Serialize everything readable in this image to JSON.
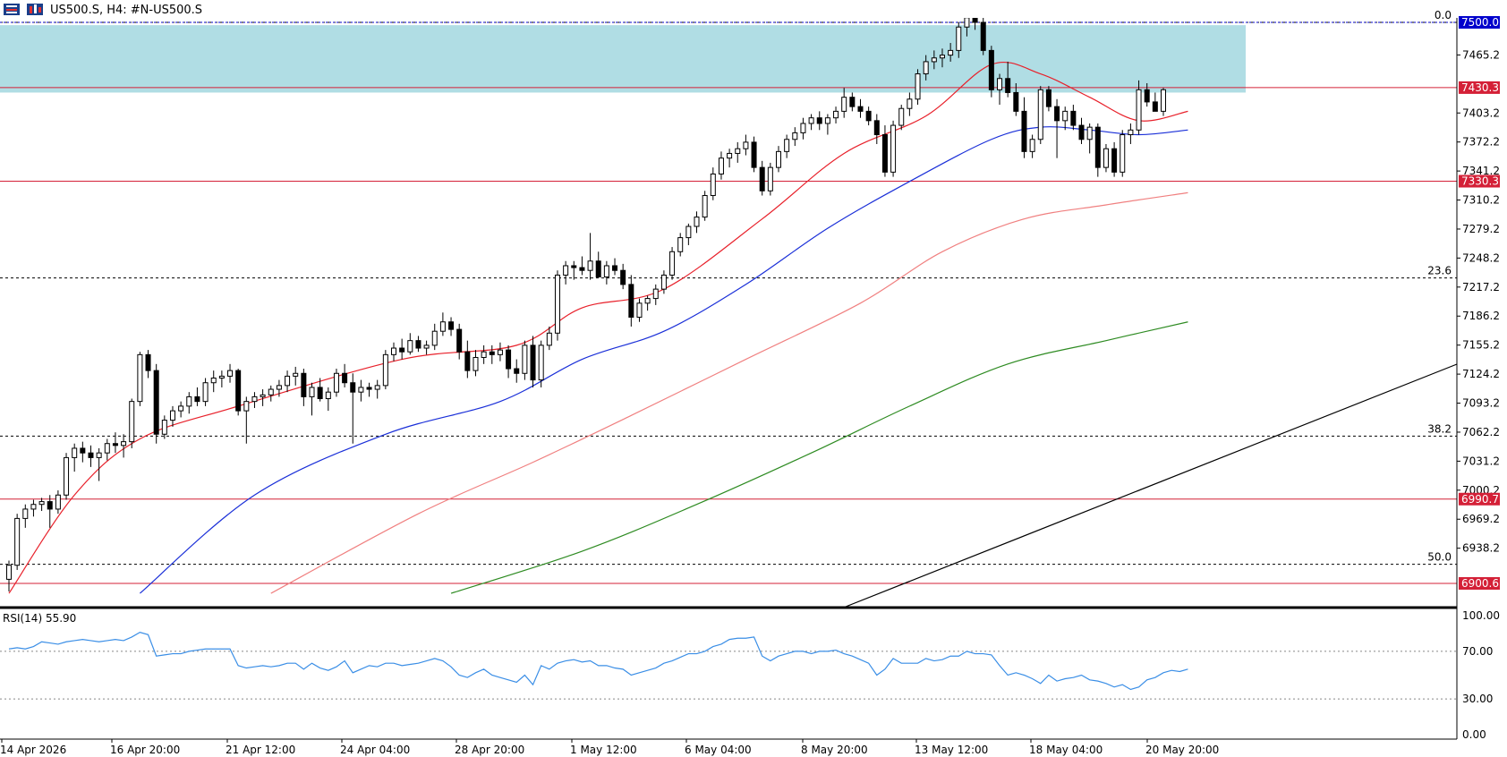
{
  "header": {
    "symbol_label": "US500.S, H4:  #N-US500.S",
    "menu_icon": "list-icon",
    "chart_icon": "candlestick-icon"
  },
  "price_axis": {
    "ticks": [
      "7465.2",
      "7403.2",
      "7372.2",
      "7341.2",
      "7310.2",
      "7279.2",
      "7248.2",
      "7217.2",
      "7186.2",
      "7155.2",
      "7124.2",
      "7093.2",
      "7062.2",
      "7031.2",
      "7000.2",
      "6969.2",
      "6938.2"
    ],
    "badges": [
      {
        "label": "7500.0",
        "value": 7500.0,
        "color": "#0000cc"
      },
      {
        "label": "7430.3",
        "value": 7430.3,
        "color": "#d42037"
      },
      {
        "label": "7330.3",
        "value": 7330.3,
        "color": "#d42037"
      },
      {
        "label": "6990.7",
        "value": 6990.7,
        "color": "#d42037"
      },
      {
        "label": "6900.6",
        "value": 6900.6,
        "color": "#d42037"
      }
    ]
  },
  "time_axis": {
    "labels": [
      "14 Apr 2026",
      "16 Apr 20:00",
      "21 Apr 12:00",
      "24 Apr 04:00",
      "28 Apr 20:00",
      "1 May 12:00",
      "6 May 04:00",
      "8 May 20:00",
      "13 May 12:00",
      "18 May 04:00",
      "20 May 20:00"
    ]
  },
  "fibonacci": [
    {
      "label": "0.0",
      "value": 7500.0
    },
    {
      "label": "23.6",
      "value": 7227.0
    },
    {
      "label": "38.2",
      "value": 7058.0
    },
    {
      "label": "50.0",
      "value": 6921.0
    }
  ],
  "zone": {
    "top": 7497,
    "bottom": 7425,
    "color": "#b0dde4"
  },
  "colors": {
    "ma_fast": "#e8202a",
    "ma_mid": "#1a2fd8",
    "ma_slow": "#f08080",
    "ma_long": "#2e8b22",
    "rsi": "#3a8ee6",
    "horizontal": "#d42037",
    "trendline": "#000000"
  },
  "rsi": {
    "label": "RSI(14) 55.90",
    "ticks": [
      "100.00",
      "70.00",
      "30.00",
      "0.00"
    ],
    "levels": [
      70,
      30
    ]
  },
  "chart_data": {
    "type": "candlestick",
    "symbol": "US500.S",
    "timeframe": "H4",
    "ylim": [
      6890,
      7520
    ],
    "candles": [
      [
        6905,
        6925,
        6892,
        6920
      ],
      [
        6920,
        6975,
        6915,
        6970
      ],
      [
        6970,
        6985,
        6960,
        6980
      ],
      [
        6980,
        6990,
        6972,
        6985
      ],
      [
        6985,
        6992,
        6978,
        6988
      ],
      [
        6988,
        6995,
        6960,
        6980
      ],
      [
        6980,
        7000,
        6975,
        6995
      ],
      [
        6995,
        7040,
        6990,
        7035
      ],
      [
        7035,
        7050,
        7020,
        7045
      ],
      [
        7045,
        7052,
        7030,
        7040
      ],
      [
        7040,
        7048,
        7025,
        7035
      ],
      [
        7035,
        7045,
        7010,
        7040
      ],
      [
        7040,
        7055,
        7032,
        7050
      ],
      [
        7050,
        7062,
        7040,
        7048
      ],
      [
        7048,
        7060,
        7035,
        7052
      ],
      [
        7052,
        7098,
        7045,
        7095
      ],
      [
        7095,
        7148,
        7090,
        7145
      ],
      [
        7145,
        7150,
        7120,
        7128
      ],
      [
        7128,
        7135,
        7050,
        7060
      ],
      [
        7060,
        7080,
        7055,
        7075
      ],
      [
        7075,
        7090,
        7068,
        7085
      ],
      [
        7085,
        7095,
        7078,
        7090
      ],
      [
        7090,
        7105,
        7082,
        7100
      ],
      [
        7100,
        7110,
        7090,
        7095
      ],
      [
        7095,
        7120,
        7090,
        7115
      ],
      [
        7115,
        7128,
        7105,
        7120
      ],
      [
        7120,
        7128,
        7110,
        7122
      ],
      [
        7122,
        7135,
        7115,
        7128
      ],
      [
        7128,
        7130,
        7080,
        7085
      ],
      [
        7085,
        7100,
        7050,
        7095
      ],
      [
        7095,
        7105,
        7088,
        7100
      ],
      [
        7100,
        7108,
        7090,
        7102
      ],
      [
        7102,
        7112,
        7095,
        7108
      ],
      [
        7108,
        7118,
        7100,
        7112
      ],
      [
        7112,
        7128,
        7105,
        7122
      ],
      [
        7122,
        7132,
        7112,
        7125
      ],
      [
        7125,
        7130,
        7090,
        7100
      ],
      [
        7100,
        7115,
        7080,
        7110
      ],
      [
        7110,
        7120,
        7095,
        7098
      ],
      [
        7098,
        7110,
        7085,
        7105
      ],
      [
        7105,
        7130,
        7100,
        7125
      ],
      [
        7125,
        7135,
        7110,
        7115
      ],
      [
        7115,
        7125,
        7050,
        7105
      ],
      [
        7105,
        7118,
        7095,
        7110
      ],
      [
        7110,
        7115,
        7100,
        7108
      ],
      [
        7108,
        7118,
        7098,
        7112
      ],
      [
        7112,
        7150,
        7108,
        7145
      ],
      [
        7145,
        7158,
        7138,
        7152
      ],
      [
        7152,
        7162,
        7140,
        7148
      ],
      [
        7148,
        7168,
        7145,
        7160
      ],
      [
        7160,
        7165,
        7148,
        7152
      ],
      [
        7152,
        7160,
        7145,
        7155
      ],
      [
        7155,
        7178,
        7150,
        7170
      ],
      [
        7170,
        7190,
        7165,
        7180
      ],
      [
        7180,
        7185,
        7165,
        7172
      ],
      [
        7172,
        7178,
        7140,
        7148
      ],
      [
        7148,
        7160,
        7120,
        7128
      ],
      [
        7128,
        7150,
        7122,
        7142
      ],
      [
        7142,
        7155,
        7135,
        7148
      ],
      [
        7148,
        7155,
        7135,
        7145
      ],
      [
        7145,
        7158,
        7138,
        7150
      ],
      [
        7150,
        7155,
        7120,
        7130
      ],
      [
        7130,
        7140,
        7115,
        7125
      ],
      [
        7125,
        7160,
        7118,
        7155
      ],
      [
        7155,
        7165,
        7110,
        7118
      ],
      [
        7118,
        7160,
        7110,
        7155
      ],
      [
        7155,
        7175,
        7150,
        7168
      ],
      [
        7168,
        7235,
        7160,
        7230
      ],
      [
        7230,
        7245,
        7220,
        7240
      ],
      [
        7240,
        7245,
        7225,
        7238
      ],
      [
        7238,
        7250,
        7230,
        7235
      ],
      [
        7235,
        7275,
        7225,
        7245
      ],
      [
        7245,
        7255,
        7230,
        7228
      ],
      [
        7228,
        7245,
        7220,
        7240
      ],
      [
        7240,
        7248,
        7230,
        7235
      ],
      [
        7235,
        7242,
        7215,
        7220
      ],
      [
        7220,
        7230,
        7175,
        7185
      ],
      [
        7185,
        7205,
        7180,
        7200
      ],
      [
        7200,
        7208,
        7192,
        7205
      ],
      [
        7205,
        7220,
        7198,
        7215
      ],
      [
        7215,
        7235,
        7210,
        7230
      ],
      [
        7230,
        7260,
        7225,
        7255
      ],
      [
        7255,
        7275,
        7250,
        7270
      ],
      [
        7270,
        7285,
        7262,
        7282
      ],
      [
        7282,
        7298,
        7275,
        7292
      ],
      [
        7292,
        7320,
        7288,
        7315
      ],
      [
        7315,
        7345,
        7310,
        7338
      ],
      [
        7338,
        7362,
        7332,
        7355
      ],
      [
        7355,
        7365,
        7345,
        7360
      ],
      [
        7360,
        7372,
        7350,
        7365
      ],
      [
        7365,
        7380,
        7358,
        7372
      ],
      [
        7372,
        7378,
        7340,
        7345
      ],
      [
        7345,
        7352,
        7315,
        7320
      ],
      [
        7320,
        7350,
        7315,
        7345
      ],
      [
        7345,
        7368,
        7340,
        7362
      ],
      [
        7362,
        7380,
        7355,
        7375
      ],
      [
        7375,
        7388,
        7368,
        7382
      ],
      [
        7382,
        7398,
        7375,
        7392
      ],
      [
        7392,
        7402,
        7385,
        7398
      ],
      [
        7398,
        7405,
        7385,
        7392
      ],
      [
        7392,
        7402,
        7380,
        7398
      ],
      [
        7398,
        7410,
        7392,
        7405
      ],
      [
        7405,
        7430,
        7398,
        7420
      ],
      [
        7420,
        7425,
        7405,
        7410
      ],
      [
        7410,
        7418,
        7398,
        7405
      ],
      [
        7405,
        7410,
        7390,
        7395
      ],
      [
        7395,
        7402,
        7370,
        7380
      ],
      [
        7380,
        7390,
        7335,
        7340
      ],
      [
        7340,
        7395,
        7335,
        7390
      ],
      [
        7390,
        7412,
        7385,
        7408
      ],
      [
        7408,
        7425,
        7400,
        7418
      ],
      [
        7418,
        7450,
        7412,
        7445
      ],
      [
        7445,
        7465,
        7438,
        7458
      ],
      [
        7458,
        7470,
        7450,
        7462
      ],
      [
        7462,
        7472,
        7452,
        7465
      ],
      [
        7465,
        7478,
        7458,
        7470
      ],
      [
        7470,
        7500,
        7462,
        7495
      ],
      [
        7495,
        7515,
        7485,
        7505
      ],
      [
        7505,
        7510,
        7492,
        7500
      ],
      [
        7500,
        7505,
        7465,
        7470
      ],
      [
        7470,
        7475,
        7420,
        7428
      ],
      [
        7428,
        7445,
        7412,
        7440
      ],
      [
        7440,
        7458,
        7420,
        7425
      ],
      [
        7425,
        7435,
        7400,
        7405
      ],
      [
        7405,
        7420,
        7355,
        7362
      ],
      [
        7362,
        7380,
        7355,
        7375
      ],
      [
        7375,
        7432,
        7370,
        7428
      ],
      [
        7428,
        7432,
        7405,
        7410
      ],
      [
        7410,
        7418,
        7355,
        7395
      ],
      [
        7395,
        7410,
        7385,
        7405
      ],
      [
        7405,
        7412,
        7385,
        7390
      ],
      [
        7390,
        7398,
        7370,
        7375
      ],
      [
        7375,
        7392,
        7360,
        7388
      ],
      [
        7388,
        7392,
        7335,
        7345
      ],
      [
        7345,
        7370,
        7340,
        7365
      ],
      [
        7365,
        7372,
        7335,
        7340
      ],
      [
        7340,
        7385,
        7335,
        7380
      ],
      [
        7380,
        7392,
        7370,
        7385
      ],
      [
        7385,
        7438,
        7380,
        7428
      ],
      [
        7428,
        7435,
        7410,
        7415
      ],
      [
        7415,
        7425,
        7405,
        7405
      ],
      [
        7405,
        7430,
        7400,
        7428
      ]
    ],
    "moving_averages": [
      {
        "period": "fast",
        "anchors": [
          [
            0,
            6890
          ],
          [
            8,
            6995
          ],
          [
            16,
            7055
          ],
          [
            28,
            7090
          ],
          [
            48,
            7140
          ],
          [
            62,
            7155
          ],
          [
            70,
            7195
          ],
          [
            80,
            7215
          ],
          [
            92,
            7290
          ],
          [
            102,
            7360
          ],
          [
            112,
            7400
          ],
          [
            120,
            7455
          ],
          [
            126,
            7445
          ],
          [
            132,
            7420
          ],
          [
            138,
            7395
          ],
          [
            144,
            7405
          ]
        ]
      },
      {
        "period": "mid",
        "anchors": [
          [
            16,
            6890
          ],
          [
            30,
            6995
          ],
          [
            46,
            7060
          ],
          [
            60,
            7095
          ],
          [
            70,
            7140
          ],
          [
            80,
            7170
          ],
          [
            90,
            7220
          ],
          [
            100,
            7280
          ],
          [
            110,
            7330
          ],
          [
            120,
            7375
          ],
          [
            126,
            7388
          ],
          [
            132,
            7385
          ],
          [
            138,
            7380
          ],
          [
            144,
            7385
          ]
        ]
      },
      {
        "period": "slow",
        "anchors": [
          [
            32,
            6890
          ],
          [
            50,
            6975
          ],
          [
            64,
            7030
          ],
          [
            76,
            7080
          ],
          [
            90,
            7140
          ],
          [
            104,
            7200
          ],
          [
            114,
            7255
          ],
          [
            124,
            7290
          ],
          [
            134,
            7305
          ],
          [
            144,
            7318
          ]
        ]
      },
      {
        "period": "long",
        "anchors": [
          [
            54,
            6890
          ],
          [
            70,
            6935
          ],
          [
            84,
            6985
          ],
          [
            98,
            7040
          ],
          [
            110,
            7090
          ],
          [
            122,
            7135
          ],
          [
            134,
            7160
          ],
          [
            144,
            7180
          ]
        ]
      }
    ],
    "rsi_values": [
      72,
      73,
      72,
      74,
      78,
      77,
      76,
      78,
      79,
      80,
      79,
      78,
      79,
      80,
      79,
      82,
      86,
      84,
      66,
      67,
      68,
      68,
      70,
      71,
      72,
      72,
      72,
      72,
      58,
      56,
      57,
      58,
      57,
      58,
      60,
      60,
      55,
      60,
      56,
      54,
      57,
      62,
      52,
      55,
      58,
      57,
      60,
      60,
      58,
      59,
      60,
      62,
      64,
      62,
      57,
      50,
      48,
      52,
      55,
      50,
      48,
      46,
      44,
      50,
      42,
      58,
      55,
      60,
      62,
      63,
      61,
      62,
      58,
      58,
      56,
      55,
      50,
      52,
      54,
      56,
      60,
      62,
      65,
      68,
      68,
      70,
      74,
      76,
      80,
      81,
      81,
      82,
      66,
      62,
      66,
      68,
      70,
      70,
      68,
      70,
      70,
      71,
      68,
      66,
      63,
      60,
      50,
      55,
      64,
      60,
      60,
      60,
      64,
      62,
      63,
      66,
      66,
      70,
      68,
      68,
      67,
      58,
      50,
      52,
      50,
      47,
      43,
      50,
      45,
      47,
      48,
      50,
      46,
      45,
      43,
      40,
      42,
      38,
      40,
      46,
      48,
      52,
      54,
      53,
      55
    ]
  }
}
